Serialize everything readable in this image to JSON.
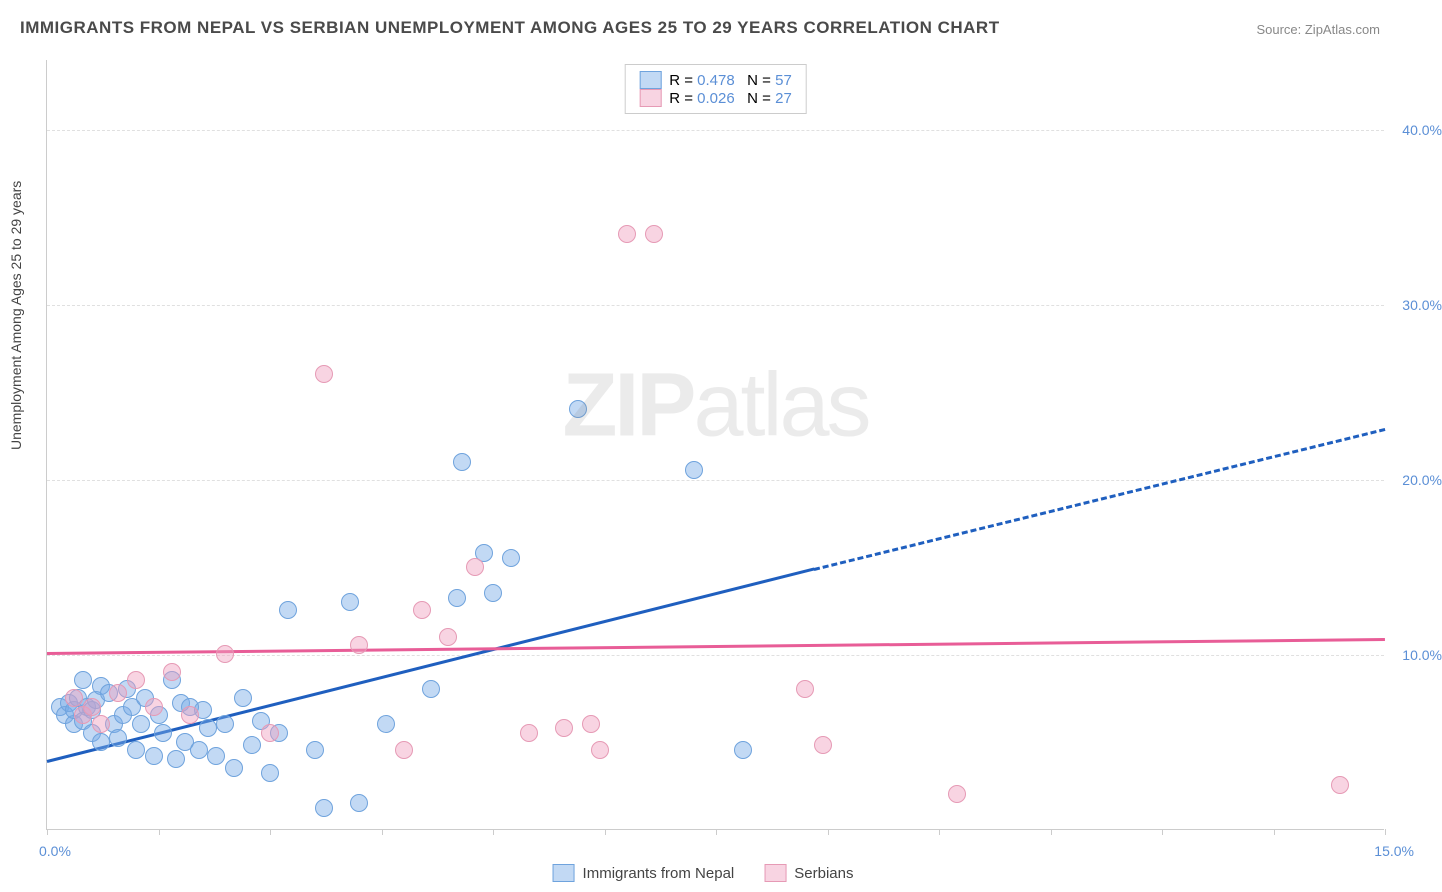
{
  "title": "IMMIGRANTS FROM NEPAL VS SERBIAN UNEMPLOYMENT AMONG AGES 25 TO 29 YEARS CORRELATION CHART",
  "source": "Source: ZipAtlas.com",
  "ylabel": "Unemployment Among Ages 25 to 29 years",
  "watermark_bold": "ZIP",
  "watermark_rest": "atlas",
  "chart": {
    "type": "scatter",
    "xlim": [
      0,
      15
    ],
    "ylim": [
      0,
      44
    ],
    "x_tick_left": "0.0%",
    "x_tick_right": "15.0%",
    "y_ticks": [
      {
        "value": 10,
        "label": "10.0%"
      },
      {
        "value": 20,
        "label": "20.0%"
      },
      {
        "value": 30,
        "label": "30.0%"
      },
      {
        "value": 40,
        "label": "40.0%"
      }
    ],
    "x_minor_ticks": [
      0,
      1.25,
      2.5,
      3.75,
      5,
      6.25,
      7.5,
      8.75,
      10,
      11.25,
      12.5,
      13.75,
      15
    ],
    "background_color": "#ffffff",
    "grid_color": "#e0e0e0",
    "axis_color": "#cccccc",
    "tick_label_color": "#5b8fd6",
    "series": [
      {
        "name": "Immigrants from Nepal",
        "fill_color": "rgba(120,170,230,0.45)",
        "stroke_color": "#6fa3dd",
        "line_color": "#1f5fbf",
        "R": "0.478",
        "N": "57",
        "trend": {
          "x1": 0,
          "y1": 4.0,
          "x2": 8.6,
          "y2": 15.0,
          "x3": 15,
          "y3": 23.0
        },
        "points": [
          [
            0.15,
            7.0
          ],
          [
            0.2,
            6.5
          ],
          [
            0.25,
            7.2
          ],
          [
            0.3,
            6.0
          ],
          [
            0.3,
            6.8
          ],
          [
            0.35,
            7.5
          ],
          [
            0.4,
            6.2
          ],
          [
            0.45,
            7.0
          ],
          [
            0.5,
            5.5
          ],
          [
            0.5,
            6.8
          ],
          [
            0.55,
            7.4
          ],
          [
            0.6,
            5.0
          ],
          [
            0.6,
            8.2
          ],
          [
            0.7,
            7.8
          ],
          [
            0.75,
            6.0
          ],
          [
            0.8,
            5.2
          ],
          [
            0.85,
            6.5
          ],
          [
            0.9,
            8.0
          ],
          [
            0.95,
            7.0
          ],
          [
            1.0,
            4.5
          ],
          [
            1.05,
            6.0
          ],
          [
            1.1,
            7.5
          ],
          [
            1.2,
            4.2
          ],
          [
            1.25,
            6.5
          ],
          [
            1.3,
            5.5
          ],
          [
            1.4,
            8.5
          ],
          [
            1.45,
            4.0
          ],
          [
            1.5,
            7.2
          ],
          [
            1.55,
            5.0
          ],
          [
            1.7,
            4.5
          ],
          [
            1.75,
            6.8
          ],
          [
            1.8,
            5.8
          ],
          [
            1.9,
            4.2
          ],
          [
            2.0,
            6.0
          ],
          [
            2.1,
            3.5
          ],
          [
            2.2,
            7.5
          ],
          [
            2.3,
            4.8
          ],
          [
            2.4,
            6.2
          ],
          [
            2.5,
            3.2
          ],
          [
            2.6,
            5.5
          ],
          [
            2.7,
            12.5
          ],
          [
            3.0,
            4.5
          ],
          [
            3.1,
            1.2
          ],
          [
            3.4,
            13.0
          ],
          [
            3.5,
            1.5
          ],
          [
            3.8,
            6.0
          ],
          [
            4.3,
            8.0
          ],
          [
            4.6,
            13.2
          ],
          [
            4.65,
            21.0
          ],
          [
            4.9,
            15.8
          ],
          [
            5.0,
            13.5
          ],
          [
            5.2,
            15.5
          ],
          [
            5.95,
            24.0
          ],
          [
            7.25,
            20.5
          ],
          [
            7.8,
            4.5
          ],
          [
            0.4,
            8.5
          ],
          [
            1.6,
            7.0
          ]
        ]
      },
      {
        "name": "Serbians",
        "fill_color": "rgba(240,160,190,0.45)",
        "stroke_color": "#e69ab5",
        "line_color": "#e85d97",
        "R": "0.026",
        "N": "27",
        "trend": {
          "x1": 0,
          "y1": 10.2,
          "x2": 15,
          "y2": 11.0
        },
        "points": [
          [
            0.3,
            7.5
          ],
          [
            0.4,
            6.5
          ],
          [
            0.5,
            7.0
          ],
          [
            0.6,
            6.0
          ],
          [
            0.8,
            7.8
          ],
          [
            1.0,
            8.5
          ],
          [
            1.2,
            7.0
          ],
          [
            1.4,
            9.0
          ],
          [
            1.6,
            6.5
          ],
          [
            2.0,
            10.0
          ],
          [
            2.5,
            5.5
          ],
          [
            3.1,
            26.0
          ],
          [
            3.5,
            10.5
          ],
          [
            4.0,
            4.5
          ],
          [
            4.2,
            12.5
          ],
          [
            4.5,
            11.0
          ],
          [
            4.8,
            15.0
          ],
          [
            5.4,
            5.5
          ],
          [
            5.8,
            5.8
          ],
          [
            6.1,
            6.0
          ],
          [
            6.2,
            4.5
          ],
          [
            6.5,
            34.0
          ],
          [
            6.8,
            34.0
          ],
          [
            8.5,
            8.0
          ],
          [
            8.7,
            4.8
          ],
          [
            10.2,
            2.0
          ],
          [
            14.5,
            2.5
          ]
        ]
      }
    ],
    "legend_top_labels": {
      "R_prefix": "R = ",
      "N_prefix": "N = "
    },
    "legend_bottom": [
      "Immigrants from Nepal",
      "Serbians"
    ]
  }
}
